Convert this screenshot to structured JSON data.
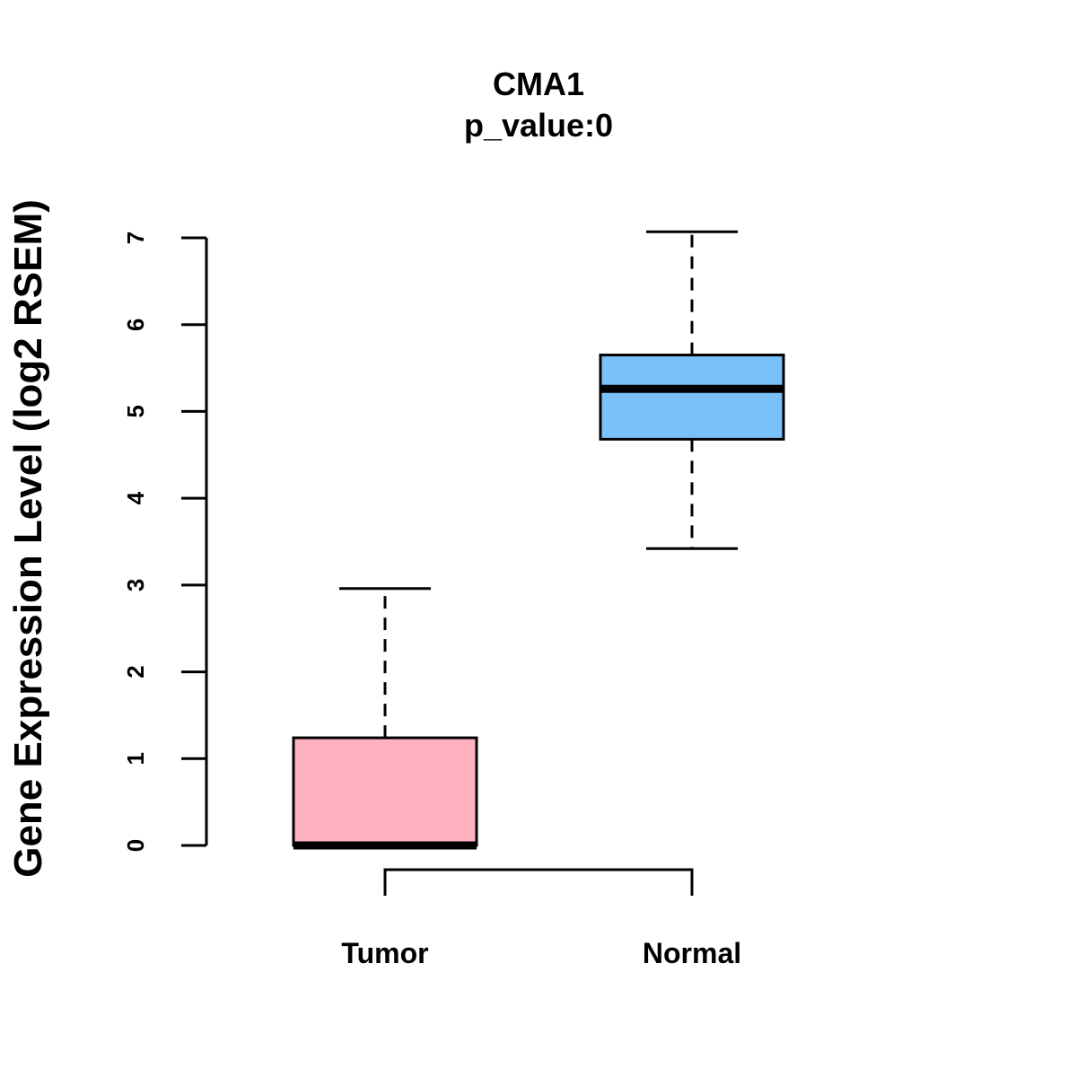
{
  "chart_data": {
    "type": "boxplot",
    "title": "CMA1",
    "subtitle": "p_value:0",
    "xlabel": "",
    "ylabel": "Gene Expression Level (log2 RSEM)",
    "ylim": [
      0,
      7
    ],
    "yticks": [
      0,
      1,
      2,
      3,
      4,
      5,
      6,
      7
    ],
    "grid": false,
    "categories": [
      "Tumor",
      "Normal"
    ],
    "boxes": [
      {
        "name": "Tumor",
        "min": 0,
        "q1": 0,
        "median": 0,
        "q3": 1.24,
        "max": 2.96,
        "color": "#ffb1c1"
      },
      {
        "name": "Normal",
        "min": 3.42,
        "q1": 4.68,
        "median": 5.26,
        "q3": 5.65,
        "max": 7.07,
        "color": "#7ac1f9"
      }
    ],
    "comparison_bracket": {
      "from": "Tumor",
      "to": "Normal"
    }
  }
}
